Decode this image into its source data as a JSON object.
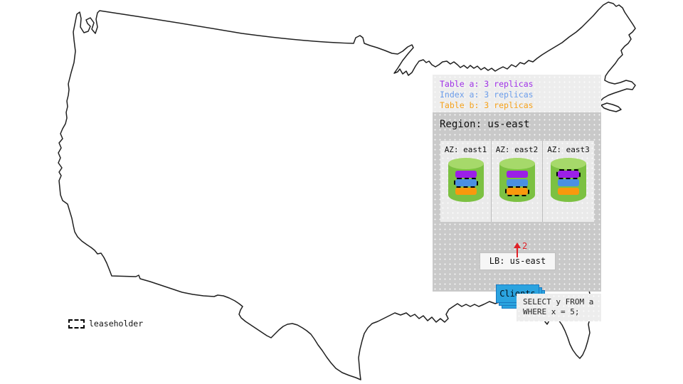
{
  "legend": {
    "entries": [
      {
        "label": "Table a: 3 replicas",
        "color": "#a032e8"
      },
      {
        "label": "Index a: 3 replicas",
        "color": "#6d9eeb"
      },
      {
        "label": "Table b: 3 replicas",
        "color": "#f6a21b"
      }
    ]
  },
  "region": {
    "title": "Region: us-east",
    "lb_label": "LB: us-east",
    "arrow_label": "2",
    "azs": [
      {
        "label": "AZ: east1",
        "bars": [
          {
            "replica": "table-a",
            "color": "#9b1fe8",
            "leaseholder": false
          },
          {
            "replica": "index-a",
            "color": "#4a90e2",
            "leaseholder": true
          },
          {
            "replica": "table-b",
            "color": "#f8990d",
            "leaseholder": false
          }
        ]
      },
      {
        "label": "AZ: east2",
        "bars": [
          {
            "replica": "table-a",
            "color": "#9b1fe8",
            "leaseholder": false
          },
          {
            "replica": "index-a",
            "color": "#4a90e2",
            "leaseholder": false
          },
          {
            "replica": "table-b",
            "color": "#f8990d",
            "leaseholder": true
          }
        ]
      },
      {
        "label": "AZ: east3",
        "bars": [
          {
            "replica": "table-a",
            "color": "#9b1fe8",
            "leaseholder": true
          },
          {
            "replica": "index-a",
            "color": "#4a90e2",
            "leaseholder": false
          },
          {
            "replica": "table-b",
            "color": "#f8990d",
            "leaseholder": false
          }
        ]
      }
    ]
  },
  "clients": {
    "label": "Clients"
  },
  "query": {
    "lines": [
      "SELECT y FROM a",
      "WHERE x = 5;"
    ]
  },
  "map_legend": {
    "leaseholder_label": "leaseholder"
  },
  "colors": {
    "cylinder": "#7cc142",
    "cylinder_top": "#a6d96a",
    "clients_blue": "#2ba3df",
    "arrow_red": "#e02128"
  }
}
